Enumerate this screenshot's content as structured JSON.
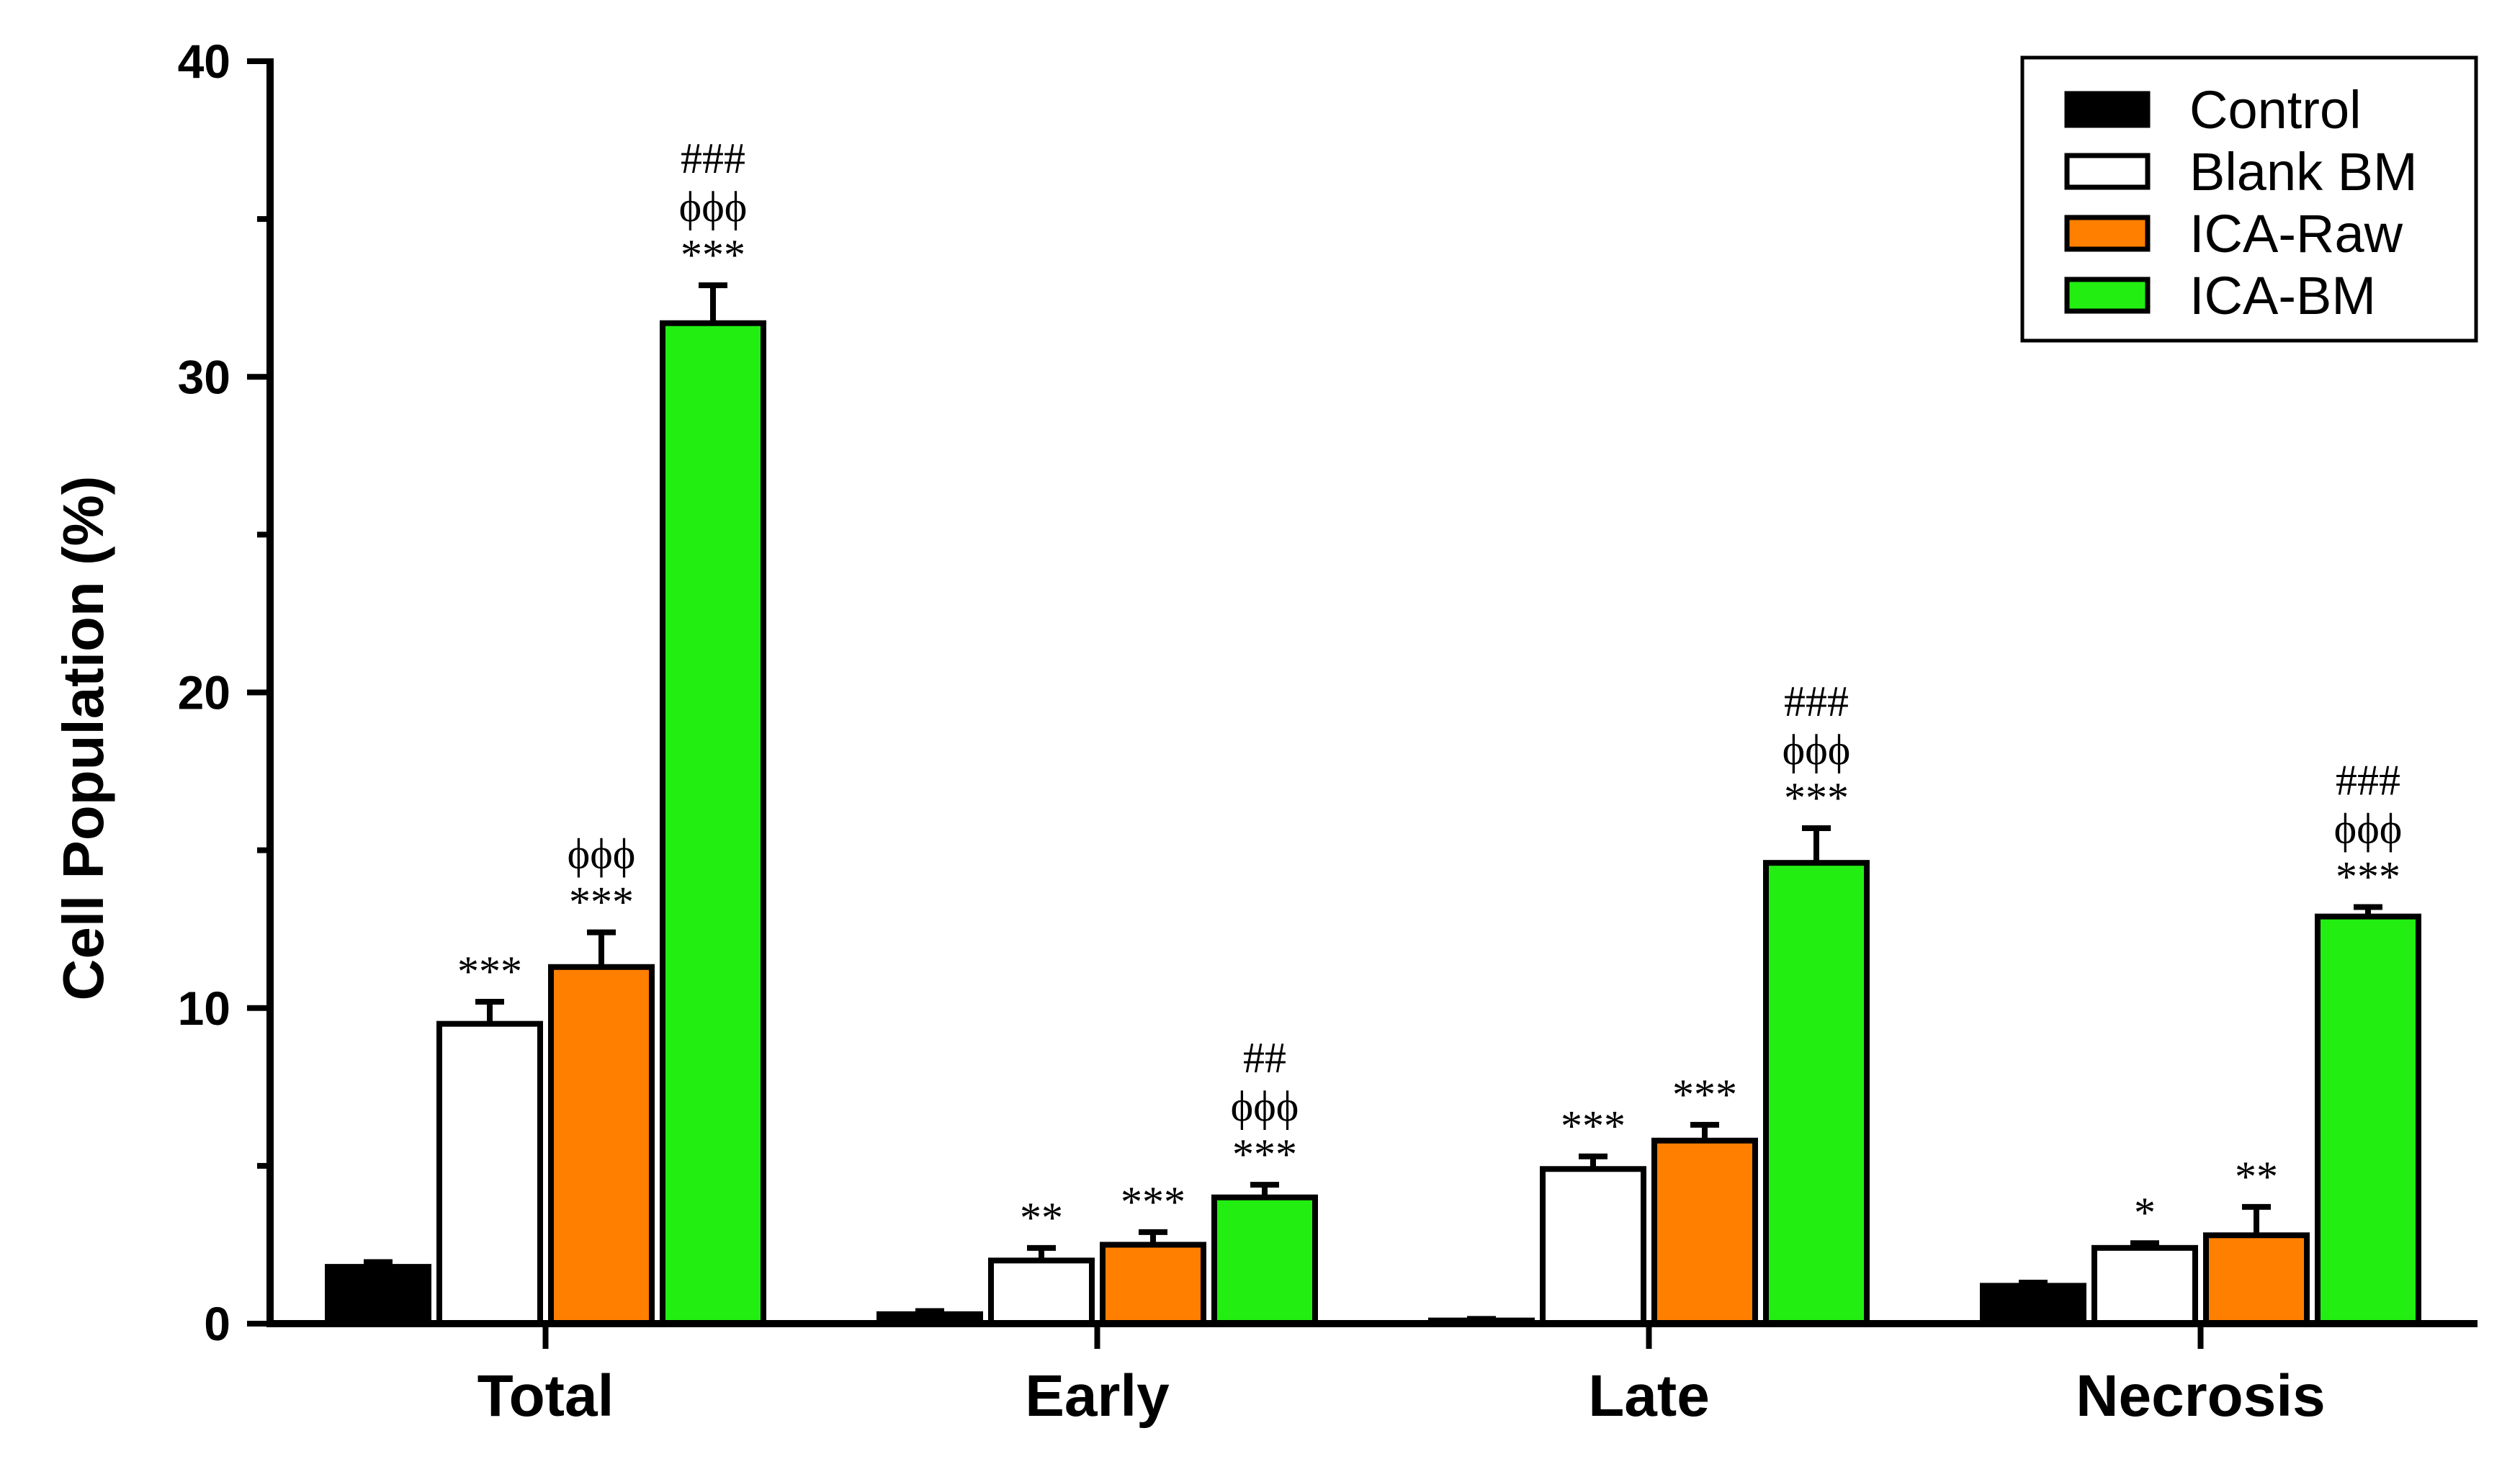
{
  "chart_data": {
    "type": "bar",
    "title": "",
    "xlabel": "",
    "ylabel": "Cell Population (%)",
    "ylim": [
      0,
      40
    ],
    "yticks": [
      0,
      10,
      20,
      30,
      40
    ],
    "categories": [
      "Total",
      "Early",
      "Late",
      "Necrosis"
    ],
    "legend_position": "top-right",
    "grid": false,
    "series": [
      {
        "name": "Control",
        "color": "#000000",
        "values": [
          1.8,
          0.3,
          0.1,
          1.2
        ],
        "errors": [
          0.15,
          0.1,
          0.05,
          0.1
        ],
        "annotations": [
          [],
          [],
          [],
          []
        ]
      },
      {
        "name": "Blank BM",
        "color": "#ffffff",
        "values": [
          9.5,
          2.0,
          4.9,
          2.4
        ],
        "errors": [
          0.7,
          0.4,
          0.4,
          0.15
        ],
        "annotations": [
          [
            "***"
          ],
          [
            "**"
          ],
          [
            "***"
          ],
          [
            "*"
          ]
        ]
      },
      {
        "name": "ICA-Raw",
        "color": "#ff7f00",
        "values": [
          11.3,
          2.5,
          5.8,
          2.8
        ],
        "errors": [
          1.1,
          0.4,
          0.5,
          0.9
        ],
        "annotations": [
          [
            "ϕϕϕ",
            "***"
          ],
          [
            "***"
          ],
          [
            "***"
          ],
          [
            "**"
          ]
        ]
      },
      {
        "name": "ICA-BM",
        "color": "#22ee11",
        "values": [
          31.7,
          4.0,
          14.6,
          12.9
        ],
        "errors": [
          1.2,
          0.4,
          1.1,
          0.3
        ],
        "annotations": [
          [
            "###",
            "ϕϕϕ",
            "***"
          ],
          [
            "##",
            "ϕϕϕ",
            "***"
          ],
          [
            "###",
            "ϕϕϕ",
            "***"
          ],
          [
            "###",
            "ϕϕϕ",
            "***"
          ]
        ]
      }
    ]
  }
}
